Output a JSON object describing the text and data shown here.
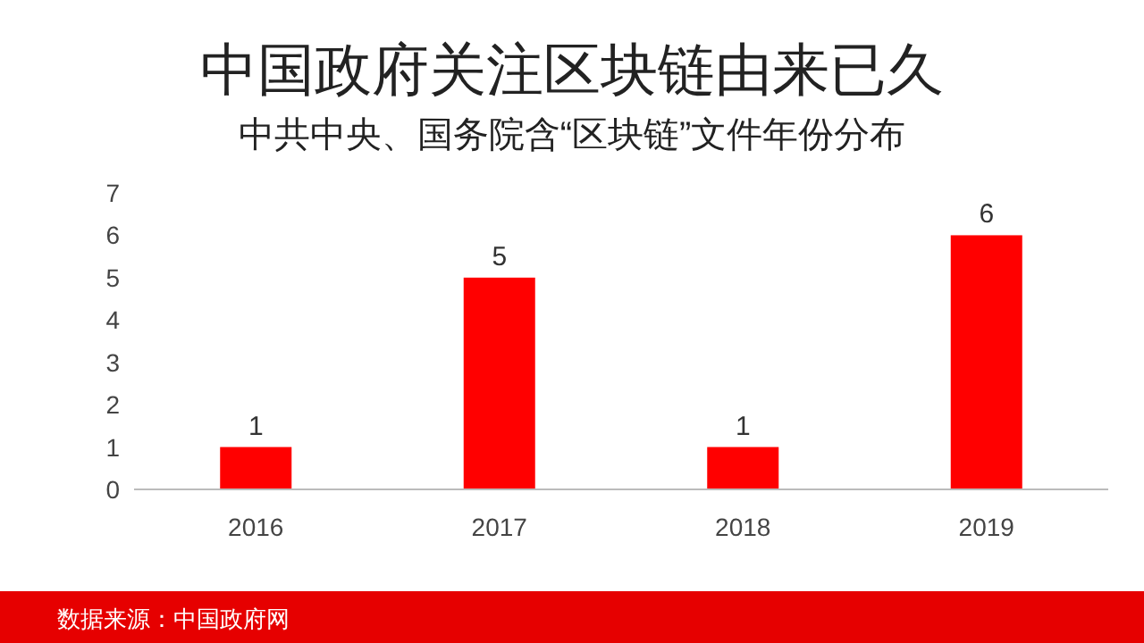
{
  "chart_data": {
    "type": "bar",
    "title": "中国政府关注区块链由来已久",
    "subtitle": "中共中央、国务院含“区块链”文件年份分布",
    "categories": [
      "2016",
      "2017",
      "2018",
      "2019"
    ],
    "values": [
      1,
      5,
      1,
      6
    ],
    "color": "#ff0000",
    "ylim": [
      0,
      7
    ],
    "yticks": [
      0,
      1,
      2,
      3,
      4,
      5,
      6,
      7
    ],
    "data_labels": true,
    "annotations": [
      "数据来源：中国政府网"
    ]
  }
}
